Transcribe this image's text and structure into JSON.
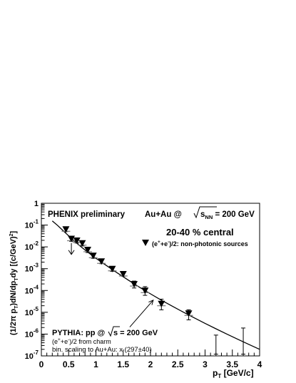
{
  "chart_data": {
    "type": "scatter",
    "xlabel": "p",
    "xlabel_sub": "T",
    "xlabel_unit": " [GeV/c]",
    "ylabel": "(1/2π p_T)dN/dp_T dy [(c/GeV)^2]",
    "ylabel_parts": {
      "a": "(1/2π p",
      "a_sub": "T",
      "b": ")dN/dp",
      "b_sub": "T",
      "c": "dy [(c/GeV)",
      "c_sup": "2",
      "d": "]"
    },
    "xlim": [
      0,
      4
    ],
    "ylim_log10": [
      -7,
      0
    ],
    "y_log": true,
    "x_ticks": [
      "0",
      "0.5",
      "1",
      "1.5",
      "2",
      "2.5",
      "3",
      "3.5",
      "4"
    ],
    "y_ticks": [
      {
        "base": "1",
        "exp": ""
      },
      {
        "base": "10",
        "exp": "-1"
      },
      {
        "base": "10",
        "exp": "-2"
      },
      {
        "base": "10",
        "exp": "-3"
      },
      {
        "base": "10",
        "exp": "-4"
      },
      {
        "base": "10",
        "exp": "-5"
      },
      {
        "base": "10",
        "exp": "-6"
      },
      {
        "base": "10",
        "exp": "-7"
      }
    ],
    "annotations": {
      "experiment": "PHENIX preliminary",
      "system_a": "Au+Au @",
      "system_s": "s",
      "system_sub": "NN",
      "system_b": " = 200 GeV",
      "centrality": "20-40 % central",
      "legend_a": "(e",
      "legend_sup1": "+",
      "legend_mid": "+e",
      "legend_sup2": "-",
      "legend_b": ")/2: non-photonic sources",
      "pythia_a": "PYTHIA: pp @",
      "pythia_s": "s",
      "pythia_b": " = 200 GeV",
      "charm_a": "(e",
      "charm_sup1": "+",
      "charm_mid": "+e",
      "charm_sup2": "-",
      "charm_b": ")/2 from charm",
      "scaling": "bin. scaling to Au+Au: x (297±40)"
    },
    "series": [
      {
        "name": "(e+ + e-)/2: non-photonic sources",
        "marker": "triangle-down",
        "points": [
          {
            "x": 0.45,
            "y": 0.065,
            "ylo": 0.05,
            "yhi": 0.082
          },
          {
            "x": 0.55,
            "y": 0.024,
            "ylo": 0.018,
            "yhi": 0.03
          },
          {
            "x": 0.65,
            "y": 0.02,
            "ylo": 0.015,
            "yhi": 0.026
          },
          {
            "x": 0.75,
            "y": 0.015,
            "ylo": 0.011,
            "yhi": 0.019
          },
          {
            "x": 0.85,
            "y": 0.0075,
            "ylo": 0.0055,
            "yhi": 0.0095
          },
          {
            "x": 0.95,
            "y": 0.004,
            "ylo": 0.003,
            "yhi": 0.005
          },
          {
            "x": 1.1,
            "y": 0.0022,
            "ylo": 0.0017,
            "yhi": 0.0028
          },
          {
            "x": 1.3,
            "y": 0.001,
            "ylo": 0.00075,
            "yhi": 0.00128
          },
          {
            "x": 1.5,
            "y": 0.00058,
            "ylo": 0.00045,
            "yhi": 0.00072
          },
          {
            "x": 1.7,
            "y": 0.0002,
            "ylo": 0.00013,
            "yhi": 0.00027
          },
          {
            "x": 1.9,
            "y": 0.0001,
            "ylo": 6e-05,
            "yhi": 0.00015
          },
          {
            "x": 2.2,
            "y": 2.5e-05,
            "ylo": 1.3e-05,
            "yhi": 4e-05
          },
          {
            "x": 2.7,
            "y": 9e-06,
            "ylo": 4.5e-06,
            "yhi": 1.3e-05
          },
          {
            "x": 3.2,
            "y": null,
            "ylo": 1.2e-07,
            "yhi": 9e-07
          },
          {
            "x": 3.7,
            "y": null,
            "ylo": 1.2e-07,
            "yhi": 1.9e-06
          }
        ],
        "lower_limit_arrow": {
          "x": 0.55,
          "y": 0.0045
        }
      },
      {
        "name": "PYTHIA: pp @ √s = 200 GeV (e+ + e-)/2 from charm",
        "type": "line",
        "x": [
          0.2,
          0.3,
          0.4,
          0.5,
          0.6,
          0.7,
          0.8,
          0.9,
          1.0,
          1.2,
          1.4,
          1.6,
          1.8,
          2.0,
          2.2,
          2.4,
          2.6,
          2.8,
          3.0,
          3.2,
          3.4,
          3.6,
          3.8,
          4.0
        ],
        "y": [
          0.155,
          0.095,
          0.055,
          0.032,
          0.019,
          0.0115,
          0.0072,
          0.0046,
          0.003,
          0.00135,
          0.00062,
          0.00029,
          0.00014,
          7e-05,
          3.6e-05,
          1.9e-05,
          1.02e-05,
          5.6e-06,
          3.1e-06,
          1.75e-06,
          1e-06,
          5.8e-07,
          3.4e-07,
          2e-07
        ]
      }
    ],
    "pythia_arrow": {
      "x_from": 1.62,
      "y_from": 2.1e-06,
      "x_to": 2.05,
      "y_to": 3.6e-05
    }
  }
}
